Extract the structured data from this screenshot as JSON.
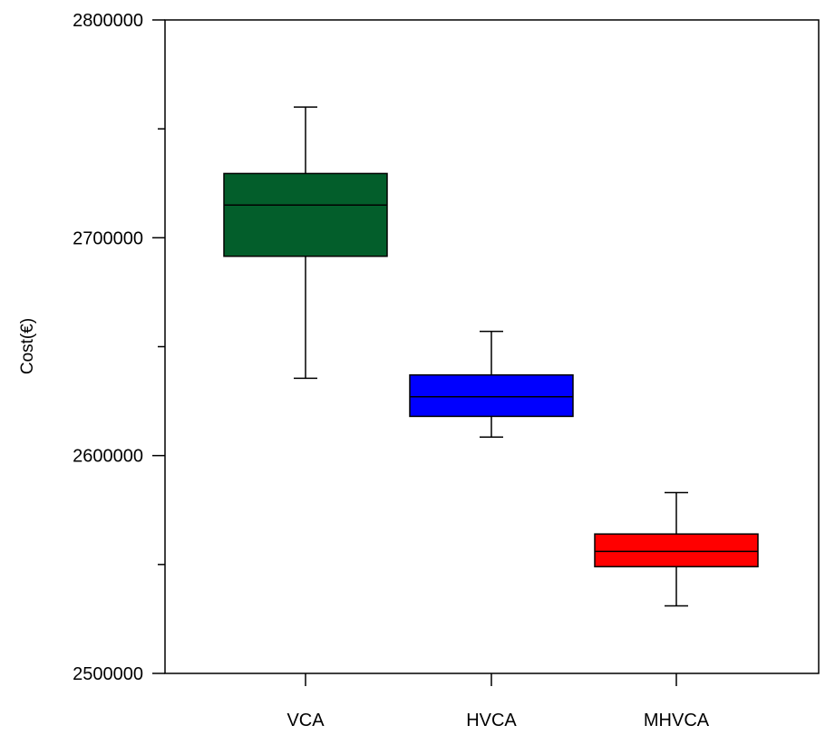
{
  "chart_data": {
    "type": "boxplot",
    "title": "",
    "xlabel": "",
    "ylabel": "Cost(€)",
    "ylim": [
      2500000,
      2800000
    ],
    "y_ticks": [
      2500000,
      2600000,
      2700000,
      2800000
    ],
    "y_tick_labels": [
      "2500000",
      "2600000",
      "2700000",
      "2800000"
    ],
    "y_minor_ticks": [
      2550000,
      2650000,
      2750000
    ],
    "categories": [
      "VCA",
      "HVCA",
      "MHVCA"
    ],
    "grid": false,
    "legend": "none",
    "series": [
      {
        "category": "VCA",
        "color": "#035e2b",
        "whisker_low": 2635500,
        "q1": 2691500,
        "median": 2715000,
        "q3": 2729500,
        "whisker_high": 2760000
      },
      {
        "category": "HVCA",
        "color": "#0000ff",
        "whisker_low": 2608500,
        "q1": 2618000,
        "median": 2627000,
        "q3": 2637000,
        "whisker_high": 2657000
      },
      {
        "category": "MHVCA",
        "color": "#ff0000",
        "whisker_low": 2531000,
        "q1": 2549000,
        "median": 2556000,
        "q3": 2564000,
        "whisker_high": 2583000
      }
    ]
  }
}
